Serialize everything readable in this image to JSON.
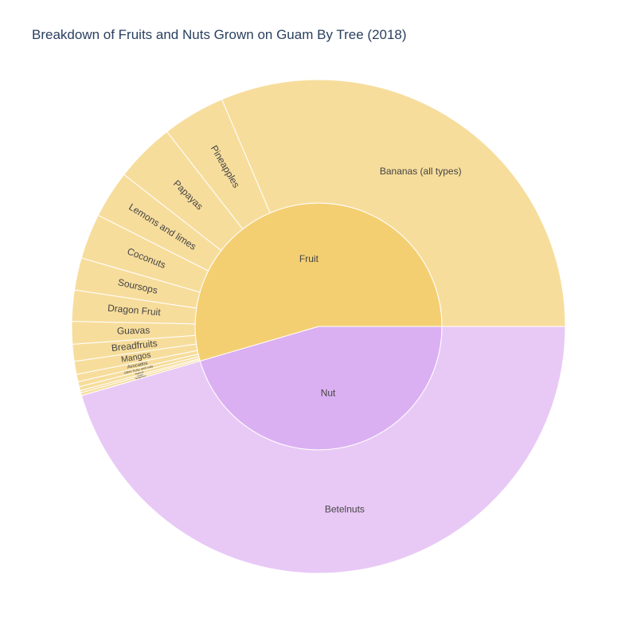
{
  "chart_data": {
    "type": "sunburst",
    "title": "Breakdown of Fruits and Nuts Grown on Guam By Tree (2018)",
    "colors": {
      "Fruit": "#f4cf72",
      "Fruit_outer": "#f7dd9c",
      "Nut": "#dbb0f2",
      "Nut_outer": "#e8c9f6"
    },
    "inner": [
      {
        "label": "Nut",
        "value": 61400
      },
      {
        "label": "Fruit",
        "value": 73605
      }
    ],
    "outer": [
      {
        "label": "Betelnuts",
        "parent": "Nut",
        "value": 61400
      },
      {
        "label": "Tangerines",
        "parent": "Fruit",
        "value": 250
      },
      {
        "label": "Limes",
        "parent": "Fruit",
        "value": 200
      },
      {
        "label": "Starfruit",
        "parent": "Fruit",
        "value": 350
      },
      {
        "label": "Other fruits and nuts",
        "parent": "Fruit",
        "value": 450
      },
      {
        "label": "Avocados",
        "parent": "Fruit",
        "value": 650
      },
      {
        "label": "Mangos",
        "parent": "Fruit",
        "value": 1150
      },
      {
        "label": "Breadfruits",
        "parent": "Fruit",
        "value": 1500
      },
      {
        "label": "Guavas",
        "parent": "Fruit",
        "value": 2000
      },
      {
        "label": "Dragon Fruit",
        "parent": "Fruit",
        "value": 2750
      },
      {
        "label": "Soursops",
        "parent": "Fruit",
        "value": 2850
      },
      {
        "label": "Coconuts",
        "parent": "Fruit",
        "value": 4000
      },
      {
        "label": "Lemons and limes",
        "parent": "Fruit",
        "value": 4200
      },
      {
        "label": "Papayas",
        "parent": "Fruit",
        "value": 5300
      },
      {
        "label": "Pineapples",
        "parent": "Fruit",
        "value": 5555
      },
      {
        "label": "Bananas (all types)",
        "parent": "Fruit",
        "value": 42400
      }
    ]
  }
}
